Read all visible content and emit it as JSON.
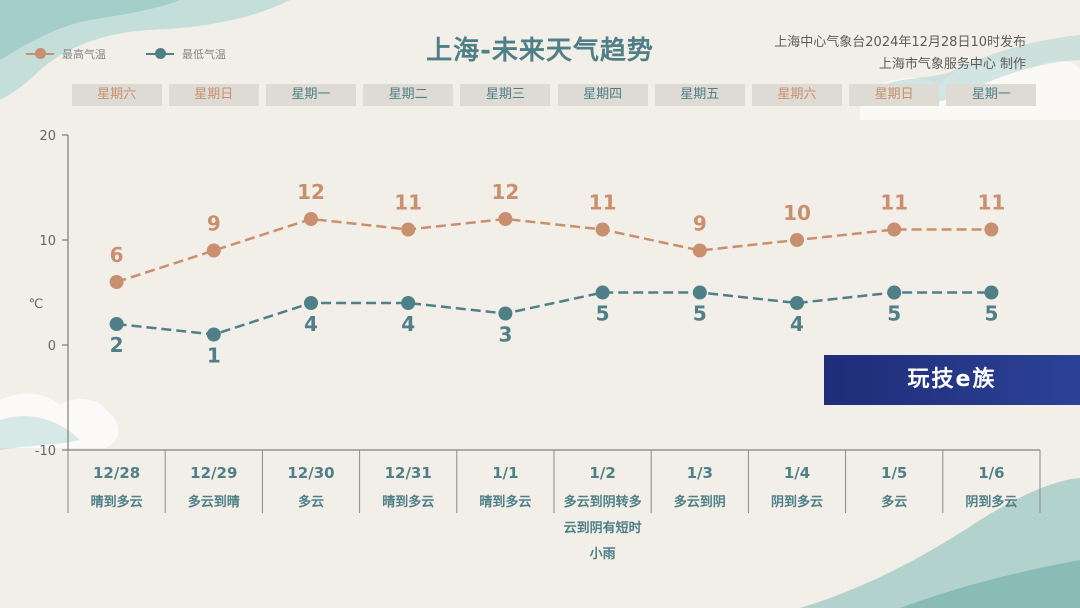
{
  "header": {
    "title": "上海-未来天气趋势",
    "issuer_line1": "上海中心气象台2024年12月28日10时发布",
    "issuer_line2": "上海市气象服务中心 制作"
  },
  "legend": [
    {
      "label": "最高气温",
      "color": "#c8906e"
    },
    {
      "label": "最低气温",
      "color": "#4f7f87"
    }
  ],
  "weekdays": [
    {
      "label": "星期六",
      "weekend": true
    },
    {
      "label": "星期日",
      "weekend": true
    },
    {
      "label": "星期一",
      "weekend": false
    },
    {
      "label": "星期二",
      "weekend": false
    },
    {
      "label": "星期三",
      "weekend": false
    },
    {
      "label": "星期四",
      "weekend": false
    },
    {
      "label": "星期五",
      "weekend": false
    },
    {
      "label": "星期六",
      "weekend": true
    },
    {
      "label": "星期日",
      "weekend": true
    },
    {
      "label": "星期一",
      "weekend": false
    }
  ],
  "watermark": {
    "text": "玩技e族"
  },
  "colors": {
    "high": "#c8906e",
    "low": "#4f7f87",
    "weekend_text": "#c8906e",
    "weekday_text": "#4f7f87",
    "axis": "#666666"
  },
  "chart_data": {
    "type": "line",
    "x": [
      "12/28",
      "12/29",
      "12/30",
      "12/31",
      "1/1",
      "1/2",
      "1/3",
      "1/4",
      "1/5",
      "1/6"
    ],
    "weather": [
      "晴到多云",
      "多云到晴",
      "多云",
      "晴到多云",
      "晴到多云",
      "多云到阴转多云到阴有短时小雨",
      "多云到阴",
      "阴到多云",
      "多云",
      "阴到多云"
    ],
    "series": [
      {
        "name": "最高气温",
        "values": [
          6,
          9,
          12,
          11,
          12,
          11,
          9,
          10,
          11,
          11
        ]
      },
      {
        "name": "最低气温",
        "values": [
          2,
          1,
          4,
          4,
          3,
          5,
          5,
          4,
          5,
          5
        ]
      }
    ],
    "ylabel": "℃",
    "ylim": [
      -10,
      20
    ],
    "yticks": [
      -10,
      0,
      10,
      20
    ],
    "grid": false,
    "legend_position": "top-left"
  }
}
